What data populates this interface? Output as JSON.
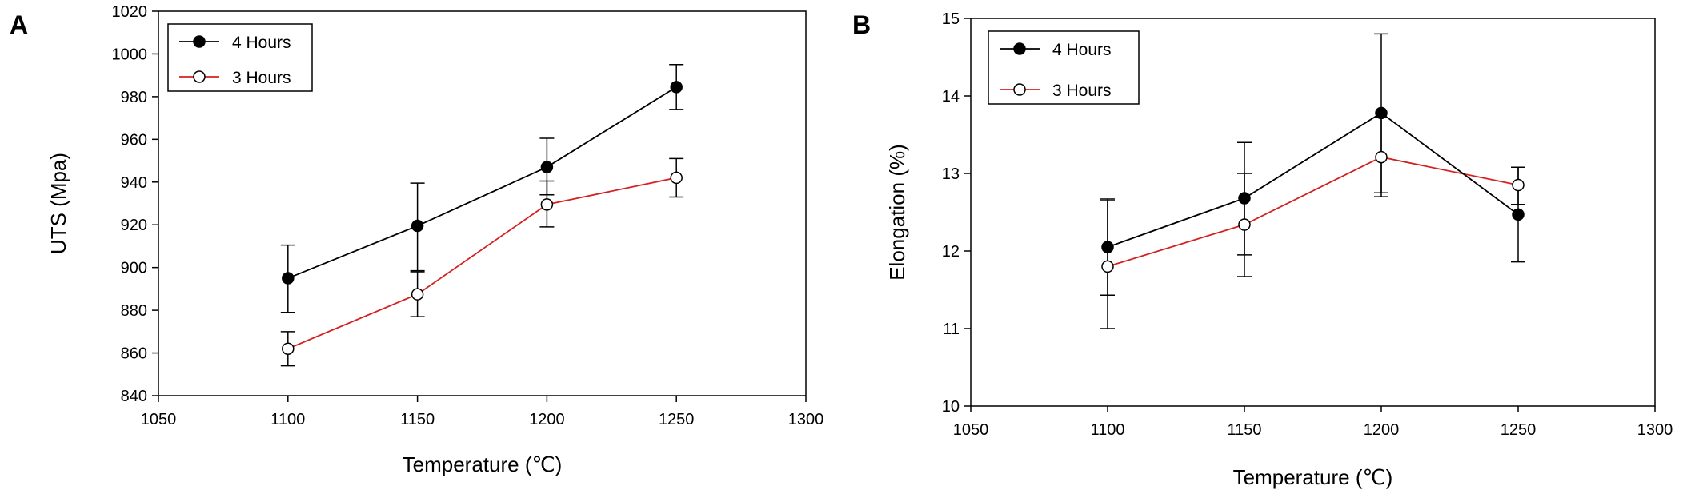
{
  "chart_data": [
    {
      "type": "line",
      "panel_label": "A",
      "title": "",
      "xlabel": "Temperature (℃)",
      "ylabel": "UTS (Mpa)",
      "xlim": [
        1050,
        1300
      ],
      "ylim": [
        840,
        1020
      ],
      "xticks": [
        1050,
        1100,
        1150,
        1200,
        1250,
        1300
      ],
      "yticks": [
        840,
        860,
        880,
        900,
        920,
        940,
        960,
        980,
        1000,
        1020
      ],
      "grid": false,
      "legend_position": "top-left",
      "x": [
        1100,
        1150,
        1200,
        1250
      ],
      "series": [
        {
          "name": "4 Hours",
          "color": "#000000",
          "marker": "filled-circle",
          "values": [
            895,
            919.5,
            947,
            984.5
          ],
          "err_low": [
            879,
            898.5,
            934,
            974
          ],
          "err_high": [
            910.5,
            939.5,
            960.5,
            995
          ]
        },
        {
          "name": "3 Hours",
          "color": "#d62020",
          "marker": "open-circle",
          "values": [
            862,
            887.5,
            929.5,
            942
          ],
          "err_low": [
            854,
            877,
            919,
            933
          ],
          "err_high": [
            870,
            898,
            940.5,
            951
          ]
        }
      ]
    },
    {
      "type": "line",
      "panel_label": "B",
      "title": "",
      "xlabel": "Temperature (℃)",
      "ylabel": "Elongation (%)",
      "xlim": [
        1050,
        1300
      ],
      "ylim": [
        10,
        15
      ],
      "xticks": [
        1050,
        1100,
        1150,
        1200,
        1250,
        1300
      ],
      "yticks": [
        10,
        11,
        12,
        13,
        14,
        15
      ],
      "grid": false,
      "legend_position": "top-left",
      "x": [
        1100,
        1150,
        1200,
        1250
      ],
      "series": [
        {
          "name": "4 Hours",
          "color": "#000000",
          "marker": "filled-circle",
          "values": [
            12.05,
            12.68,
            13.78,
            12.47
          ],
          "err_low": [
            11.43,
            11.95,
            12.75,
            11.86
          ],
          "err_high": [
            12.67,
            13.4,
            14.8,
            13.08
          ]
        },
        {
          "name": "3 Hours",
          "color": "#d62020",
          "marker": "open-circle",
          "values": [
            11.8,
            12.34,
            13.21,
            12.85
          ],
          "err_low": [
            11.0,
            11.67,
            12.7,
            12.6
          ],
          "err_high": [
            12.65,
            13.0,
            13.72,
            13.08
          ]
        }
      ]
    }
  ]
}
